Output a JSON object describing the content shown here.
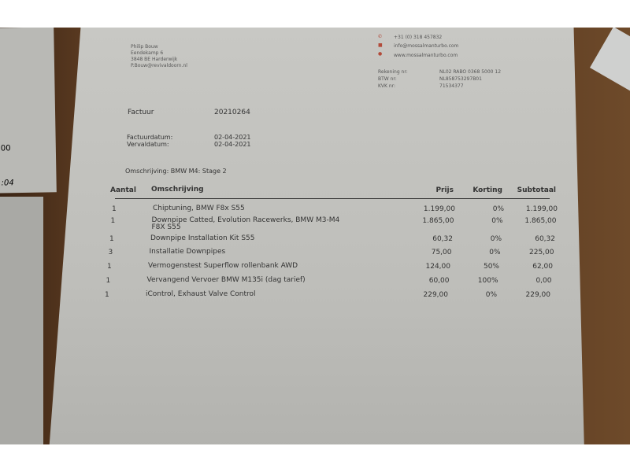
{
  "sender": {
    "name": "Philip Bouw",
    "street": "Eendekamp 6",
    "city": "3848 BE Harderwijk",
    "email": "P.Bouw@revivaldoorn.nl"
  },
  "company": {
    "phone": "+31 (0) 318 457832",
    "email": "info@mossalmanturbo.com",
    "web": "www.mossalmanturbo.com",
    "rekening_label": "Rekening nr:",
    "rekening": "NL02 RABO 0368 5000 12",
    "btw_label": "BTW nr:",
    "btw": "NL858753297B01",
    "kvk_label": "KVK nr:",
    "kvk": "71534377",
    "accent": "#b24b3a"
  },
  "invoice": {
    "label": "Factuur",
    "number": "20210264",
    "date_label": "Factuurdatum:",
    "date": "02-04-2021",
    "due_label": "Vervaldatum:",
    "due": "02-04-2021",
    "desc": "Omschrijving: BMW M4: Stage 2"
  },
  "table": {
    "headers": [
      "Aantal",
      "Omschrijving",
      "Prijs",
      "Korting",
      "Subtotaal"
    ],
    "rows": [
      [
        "1",
        "Chiptuning, BMW F8x S55",
        "1.199,00",
        "0%",
        "1.199,00"
      ],
      [
        "1",
        "Downpipe Catted, Evolution Racewerks, BMW M3-M4 F8X S55",
        "1.865,00",
        "0%",
        "1.865,00"
      ],
      [
        "1",
        "Downpipe Installation Kit S55",
        "60,32",
        "0%",
        "60,32"
      ],
      [
        "3",
        "Installatie Downpipes",
        "75,00",
        "0%",
        "225,00"
      ],
      [
        "1",
        "Vermogenstest Superflow rollenbank AWD",
        "124,00",
        "50%",
        "62,00"
      ],
      [
        "1",
        "Vervangend Vervoer BMW M135i (dag tarief)",
        "60,00",
        "100%",
        "0,00"
      ],
      [
        "1",
        "iControl, Exhaust Valve Control",
        "229,00",
        "0%",
        "229,00"
      ]
    ]
  },
  "left_fragments": [
    "00",
    ":04"
  ]
}
